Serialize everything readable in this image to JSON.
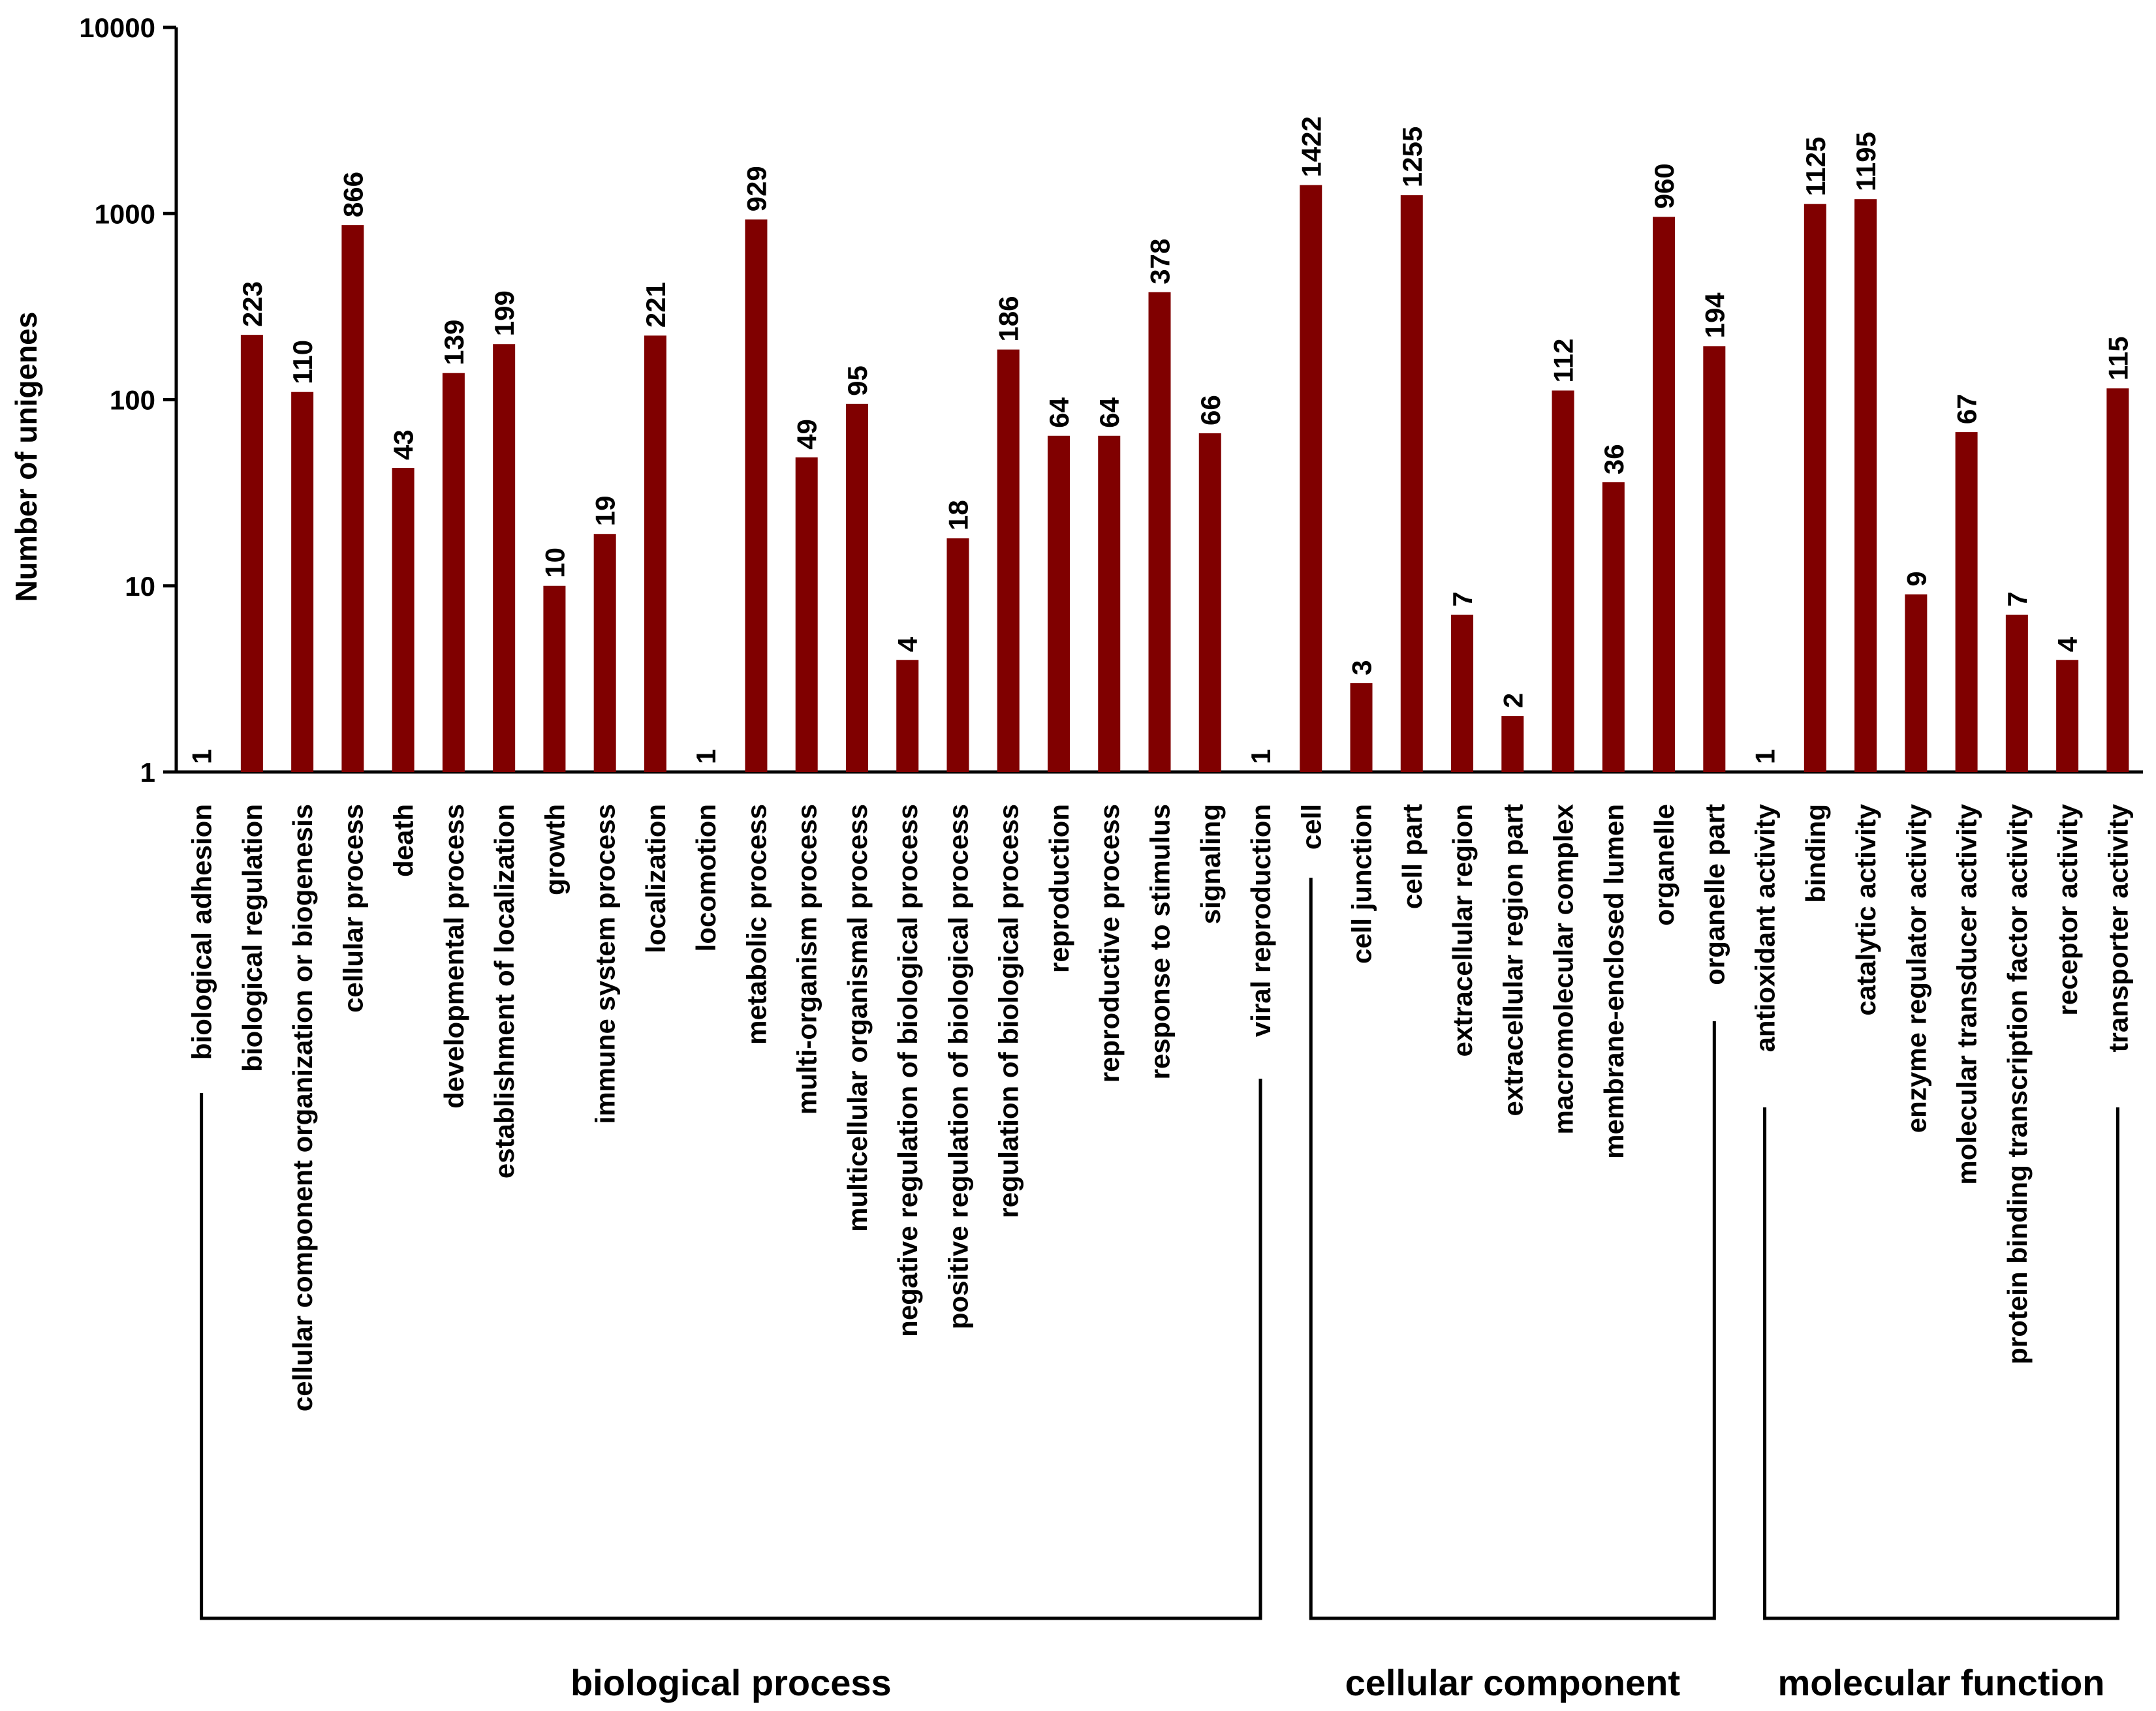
{
  "chart_data": {
    "type": "bar",
    "ylabel": "Number of unigenes",
    "yscale": "log",
    "ylim": [
      1,
      10000
    ],
    "yticks": [
      "1",
      "10",
      "100",
      "1000",
      "10000"
    ],
    "bar_color": "#800000",
    "categories": [
      "biological adhesion",
      "biological regulation",
      "cellular component organization or biogenesis",
      "cellular process",
      "death",
      "developmental process",
      "establishment of localization",
      "growth",
      "immune system process",
      "localization",
      "locomotion",
      "metabolic process",
      "multi-organism process",
      "multicellular organismal process",
      "negative regulation of biological process",
      "positive regulation of biological process",
      "regulation of biological process",
      "reproduction",
      "reproductive process",
      "response to stimulus",
      "signaling",
      "viral reproduction",
      "cell",
      "cell junction",
      "cell part",
      "extracellular region",
      "extracellular region part",
      "macromolecular complex",
      "membrane-enclosed lumen",
      "organelle",
      "organelle part",
      "antioxidant activity",
      "binding",
      "catalytic activity",
      "enzyme regulator activity",
      "molecular transducer activity",
      "protein binding transcription factor activity",
      "receptor activity",
      "transporter activity"
    ],
    "values": [
      1,
      223,
      110,
      866,
      43,
      139,
      199,
      10,
      19,
      221,
      1,
      929,
      49,
      95,
      4,
      18,
      186,
      64,
      64,
      378,
      66,
      1,
      1422,
      3,
      1255,
      7,
      2,
      112,
      36,
      960,
      194,
      1,
      1125,
      1195,
      9,
      67,
      7,
      4,
      115
    ],
    "value_labels": [
      "1",
      "223",
      "110",
      "866",
      "43",
      "139",
      "199",
      "10",
      "19",
      "221",
      "1",
      "929",
      "49",
      "95",
      "4",
      "18",
      "186",
      "64",
      "64",
      "378",
      "66",
      "1",
      "1422",
      "3",
      "1255",
      "7",
      "2",
      "112",
      "36",
      "960",
      "194",
      "1",
      "1125",
      "1195",
      "9",
      "67",
      "7",
      "4",
      "115"
    ],
    "groups": [
      {
        "name": "biological process",
        "start": 0,
        "end": 21
      },
      {
        "name": "cellular component",
        "start": 22,
        "end": 30
      },
      {
        "name": "molecular function",
        "start": 31,
        "end": 38
      }
    ]
  }
}
